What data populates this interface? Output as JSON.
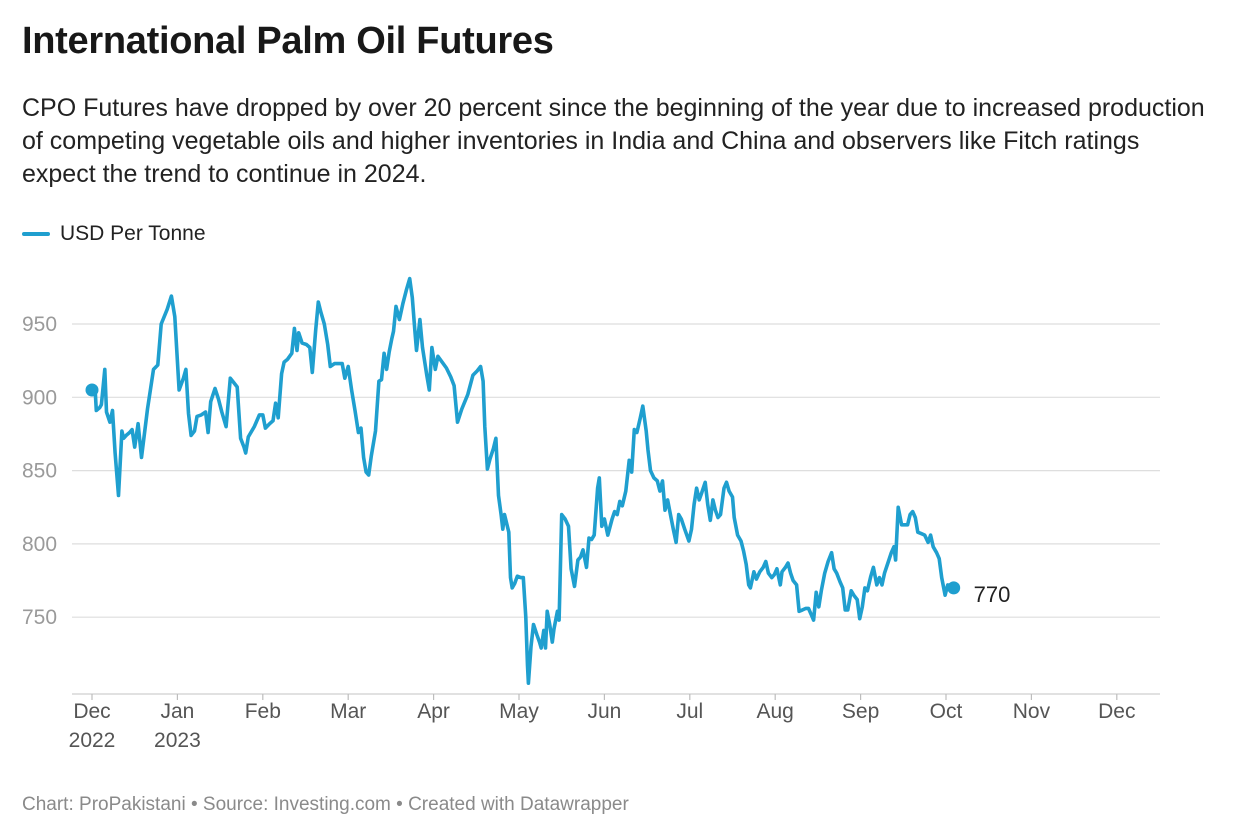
{
  "header": {
    "title": "International Palm Oil Futures",
    "subtitle": "CPO Futures have dropped by over 20 percent since the beginning of the year due to increased production of competing vegetable oils and higher inventories in India and China and observers like Fitch ratings expect the trend to continue in 2024."
  },
  "footer": {
    "text": "Chart: ProPakistani • Source: Investing.com • Created with Datawrapper"
  },
  "chart_data": {
    "type": "line",
    "title": "International Palm Oil Futures",
    "xlabel": "",
    "ylabel": "",
    "ylim": [
      700,
      980
    ],
    "y_ticks": [
      750,
      800,
      850,
      900,
      950
    ],
    "grid": true,
    "legend_position": "top-left",
    "x_ticks": [
      {
        "month": 0,
        "line1": "Dec",
        "line2": "2022"
      },
      {
        "month": 1,
        "line1": "Jan",
        "line2": "2023"
      },
      {
        "month": 2,
        "line1": "Feb",
        "line2": ""
      },
      {
        "month": 3,
        "line1": "Mar",
        "line2": ""
      },
      {
        "month": 4,
        "line1": "Apr",
        "line2": ""
      },
      {
        "month": 5,
        "line1": "May",
        "line2": ""
      },
      {
        "month": 6,
        "line1": "Jun",
        "line2": ""
      },
      {
        "month": 7,
        "line1": "Jul",
        "line2": ""
      },
      {
        "month": 8,
        "line1": "Aug",
        "line2": ""
      },
      {
        "month": 9,
        "line1": "Sep",
        "line2": ""
      },
      {
        "month": 10,
        "line1": "Oct",
        "line2": ""
      },
      {
        "month": 11,
        "line1": "Nov",
        "line2": ""
      },
      {
        "month": 12,
        "line1": "Dec",
        "line2": ""
      }
    ],
    "end_label": "770",
    "series": [
      {
        "name": "USD Per Tonne",
        "color": "#1f9fcf",
        "points": [
          [
            0.0,
            905
          ],
          [
            0.04,
            902
          ],
          [
            0.05,
            891
          ],
          [
            0.09,
            893
          ],
          [
            0.11,
            895
          ],
          [
            0.15,
            919
          ],
          [
            0.17,
            890
          ],
          [
            0.21,
            883
          ],
          [
            0.24,
            891
          ],
          [
            0.27,
            862
          ],
          [
            0.31,
            833
          ],
          [
            0.35,
            877
          ],
          [
            0.37,
            872
          ],
          [
            0.4,
            874
          ],
          [
            0.44,
            876
          ],
          [
            0.47,
            878
          ],
          [
            0.5,
            866
          ],
          [
            0.54,
            882
          ],
          [
            0.58,
            859
          ],
          [
            0.65,
            892
          ],
          [
            0.72,
            919
          ],
          [
            0.77,
            922
          ],
          [
            0.81,
            950
          ],
          [
            0.88,
            960
          ],
          [
            0.93,
            969
          ],
          [
            0.97,
            955
          ],
          [
            1.02,
            905
          ],
          [
            1.07,
            913
          ],
          [
            1.1,
            919
          ],
          [
            1.13,
            889
          ],
          [
            1.16,
            874
          ],
          [
            1.2,
            877
          ],
          [
            1.23,
            887
          ],
          [
            1.28,
            888
          ],
          [
            1.33,
            890
          ],
          [
            1.36,
            876
          ],
          [
            1.39,
            897
          ],
          [
            1.44,
            906
          ],
          [
            1.48,
            899
          ],
          [
            1.52,
            890
          ],
          [
            1.57,
            880
          ],
          [
            1.62,
            913
          ],
          [
            1.66,
            910
          ],
          [
            1.7,
            907
          ],
          [
            1.74,
            872
          ],
          [
            1.78,
            866
          ],
          [
            1.8,
            862
          ],
          [
            1.83,
            873
          ],
          [
            1.9,
            880
          ],
          [
            1.96,
            888
          ],
          [
            2.0,
            888
          ],
          [
            2.03,
            879
          ],
          [
            2.08,
            882
          ],
          [
            2.12,
            884
          ],
          [
            2.15,
            896
          ],
          [
            2.18,
            886
          ],
          [
            2.22,
            916
          ],
          [
            2.25,
            924
          ],
          [
            2.29,
            926
          ],
          [
            2.34,
            930
          ],
          [
            2.37,
            947
          ],
          [
            2.4,
            932
          ],
          [
            2.42,
            944
          ],
          [
            2.46,
            937
          ],
          [
            2.51,
            936
          ],
          [
            2.55,
            934
          ],
          [
            2.58,
            917
          ],
          [
            2.62,
            946
          ],
          [
            2.65,
            965
          ],
          [
            2.68,
            958
          ],
          [
            2.72,
            950
          ],
          [
            2.76,
            936
          ],
          [
            2.79,
            921
          ],
          [
            2.84,
            923
          ],
          [
            2.88,
            923
          ],
          [
            2.93,
            923
          ],
          [
            2.96,
            913
          ],
          [
            3.0,
            921
          ],
          [
            3.04,
            905
          ],
          [
            3.08,
            891
          ],
          [
            3.12,
            876
          ],
          [
            3.15,
            879
          ],
          [
            3.18,
            859
          ],
          [
            3.21,
            849
          ],
          [
            3.24,
            847
          ],
          [
            3.27,
            860
          ],
          [
            3.32,
            877
          ],
          [
            3.36,
            911
          ],
          [
            3.39,
            912
          ],
          [
            3.42,
            930
          ],
          [
            3.45,
            919
          ],
          [
            3.48,
            931
          ],
          [
            3.51,
            940
          ],
          [
            3.53,
            945
          ],
          [
            3.56,
            962
          ],
          [
            3.6,
            953
          ],
          [
            3.64,
            964
          ],
          [
            3.68,
            973
          ],
          [
            3.72,
            981
          ],
          [
            3.75,
            968
          ],
          [
            3.78,
            946
          ],
          [
            3.8,
            932
          ],
          [
            3.84,
            953
          ],
          [
            3.87,
            934
          ],
          [
            3.92,
            915
          ],
          [
            3.95,
            905
          ],
          [
            3.98,
            934
          ],
          [
            4.02,
            919
          ],
          [
            4.05,
            928
          ],
          [
            4.1,
            924
          ],
          [
            4.15,
            920
          ],
          [
            4.2,
            914
          ],
          [
            4.24,
            908
          ],
          [
            4.28,
            883
          ],
          [
            4.33,
            892
          ],
          [
            4.4,
            902
          ],
          [
            4.46,
            915
          ],
          [
            4.51,
            918
          ],
          [
            4.55,
            921
          ],
          [
            4.58,
            911
          ],
          [
            4.6,
            880
          ],
          [
            4.63,
            851
          ],
          [
            4.66,
            858
          ],
          [
            4.7,
            865
          ],
          [
            4.73,
            872
          ],
          [
            4.76,
            833
          ],
          [
            4.79,
            820
          ],
          [
            4.81,
            810
          ],
          [
            4.83,
            820
          ],
          [
            4.86,
            813
          ],
          [
            4.88,
            808
          ],
          [
            4.9,
            777
          ],
          [
            4.92,
            770
          ],
          [
            4.95,
            773
          ],
          [
            4.98,
            778
          ],
          [
            5.02,
            777
          ],
          [
            5.05,
            777
          ],
          [
            5.08,
            750
          ],
          [
            5.1,
            717
          ],
          [
            5.11,
            705
          ],
          [
            5.14,
            730
          ],
          [
            5.17,
            745
          ],
          [
            5.21,
            738
          ],
          [
            5.24,
            733
          ],
          [
            5.26,
            729
          ],
          [
            5.29,
            741
          ],
          [
            5.31,
            729
          ],
          [
            5.33,
            754
          ],
          [
            5.36,
            745
          ],
          [
            5.39,
            733
          ],
          [
            5.41,
            742
          ],
          [
            5.45,
            754
          ],
          [
            5.47,
            748
          ],
          [
            5.5,
            820
          ],
          [
            5.54,
            817
          ],
          [
            5.58,
            812
          ],
          [
            5.61,
            783
          ],
          [
            5.65,
            771
          ],
          [
            5.69,
            789
          ],
          [
            5.72,
            791
          ],
          [
            5.75,
            796
          ],
          [
            5.79,
            784
          ],
          [
            5.82,
            804
          ],
          [
            5.85,
            803
          ],
          [
            5.88,
            806
          ],
          [
            5.92,
            838
          ],
          [
            5.94,
            845
          ],
          [
            5.97,
            812
          ],
          [
            6.0,
            817
          ],
          [
            6.04,
            806
          ],
          [
            6.09,
            817
          ],
          [
            6.12,
            822
          ],
          [
            6.15,
            820
          ],
          [
            6.18,
            829
          ],
          [
            6.21,
            826
          ],
          [
            6.25,
            836
          ],
          [
            6.29,
            857
          ],
          [
            6.32,
            849
          ],
          [
            6.35,
            878
          ],
          [
            6.38,
            876
          ],
          [
            6.42,
            886
          ],
          [
            6.45,
            894
          ],
          [
            6.49,
            877
          ],
          [
            6.51,
            864
          ],
          [
            6.54,
            850
          ],
          [
            6.58,
            845
          ],
          [
            6.62,
            843
          ],
          [
            6.65,
            836
          ],
          [
            6.68,
            843
          ],
          [
            6.71,
            823
          ],
          [
            6.74,
            830
          ],
          [
            6.78,
            818
          ],
          [
            6.81,
            809
          ],
          [
            6.84,
            801
          ],
          [
            6.87,
            820
          ],
          [
            6.9,
            817
          ],
          [
            6.94,
            810
          ],
          [
            6.99,
            802
          ],
          [
            7.02,
            810
          ],
          [
            7.05,
            827
          ],
          [
            7.08,
            838
          ],
          [
            7.11,
            830
          ],
          [
            7.14,
            835
          ],
          [
            7.18,
            842
          ],
          [
            7.21,
            827
          ],
          [
            7.24,
            816
          ],
          [
            7.27,
            830
          ],
          [
            7.3,
            823
          ],
          [
            7.33,
            818
          ],
          [
            7.36,
            820
          ],
          [
            7.4,
            838
          ],
          [
            7.43,
            842
          ],
          [
            7.46,
            836
          ],
          [
            7.5,
            832
          ],
          [
            7.52,
            818
          ],
          [
            7.56,
            806
          ],
          [
            7.6,
            802
          ],
          [
            7.63,
            795
          ],
          [
            7.66,
            786
          ],
          [
            7.69,
            772
          ],
          [
            7.71,
            770
          ],
          [
            7.75,
            781
          ],
          [
            7.78,
            776
          ],
          [
            7.82,
            781
          ],
          [
            7.86,
            784
          ],
          [
            7.89,
            788
          ],
          [
            7.92,
            780
          ],
          [
            7.96,
            777
          ],
          [
            7.99,
            779
          ],
          [
            8.02,
            783
          ],
          [
            8.06,
            772
          ],
          [
            8.08,
            781
          ],
          [
            8.12,
            784
          ],
          [
            8.15,
            787
          ],
          [
            8.18,
            780
          ],
          [
            8.21,
            775
          ],
          [
            8.25,
            772
          ],
          [
            8.28,
            754
          ],
          [
            8.32,
            755
          ],
          [
            8.36,
            756
          ],
          [
            8.39,
            756
          ],
          [
            8.42,
            752
          ],
          [
            8.45,
            748
          ],
          [
            8.48,
            767
          ],
          [
            8.51,
            757
          ],
          [
            8.54,
            768
          ],
          [
            8.58,
            780
          ],
          [
            8.62,
            788
          ],
          [
            8.66,
            794
          ],
          [
            8.69,
            783
          ],
          [
            8.72,
            780
          ],
          [
            8.76,
            774
          ],
          [
            8.79,
            770
          ],
          [
            8.82,
            755
          ],
          [
            8.85,
            755
          ],
          [
            8.89,
            768
          ],
          [
            8.92,
            765
          ],
          [
            8.96,
            762
          ],
          [
            8.99,
            749
          ],
          [
            9.02,
            757
          ],
          [
            9.05,
            770
          ],
          [
            9.08,
            768
          ],
          [
            9.12,
            778
          ],
          [
            9.15,
            784
          ],
          [
            9.19,
            772
          ],
          [
            9.22,
            777
          ],
          [
            9.25,
            772
          ],
          [
            9.28,
            780
          ],
          [
            9.32,
            787
          ],
          [
            9.36,
            794
          ],
          [
            9.39,
            798
          ],
          [
            9.41,
            789
          ],
          [
            9.44,
            825
          ],
          [
            9.48,
            813
          ],
          [
            9.51,
            813
          ],
          [
            9.55,
            813
          ],
          [
            9.58,
            820
          ],
          [
            9.61,
            822
          ],
          [
            9.64,
            818
          ],
          [
            9.67,
            808
          ],
          [
            9.71,
            807
          ],
          [
            9.75,
            806
          ],
          [
            9.79,
            801
          ],
          [
            9.82,
            806
          ],
          [
            9.85,
            798
          ],
          [
            9.89,
            794
          ],
          [
            9.92,
            790
          ],
          [
            9.95,
            777
          ],
          [
            9.99,
            765
          ],
          [
            10.02,
            772
          ],
          [
            10.06,
            770
          ],
          [
            10.09,
            770
          ]
        ]
      }
    ]
  }
}
